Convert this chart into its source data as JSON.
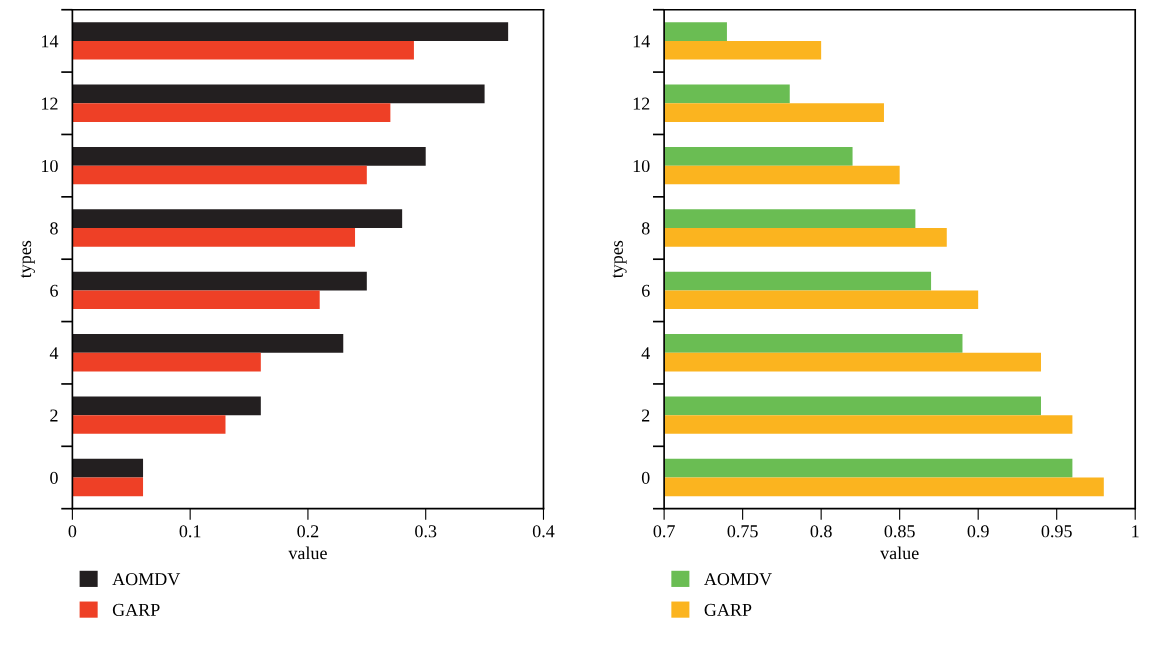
{
  "chart_data": [
    {
      "type": "bar",
      "orientation": "horizontal",
      "xlabel": "value",
      "ylabel": "types",
      "categories": [
        "14",
        "12",
        "10",
        "8",
        "6",
        "4",
        "2",
        "0"
      ],
      "xlim": [
        0,
        0.4
      ],
      "xticks": [
        0,
        0.1,
        0.2,
        0.3,
        0.4
      ],
      "legend": "bottom left",
      "series": [
        {
          "name": "AOMDV",
          "color": "#231f20",
          "values": [
            0.37,
            0.35,
            0.3,
            0.28,
            0.25,
            0.23,
            0.16,
            0.06
          ]
        },
        {
          "name": "GARP",
          "color": "#ee4026",
          "values": [
            0.29,
            0.27,
            0.25,
            0.24,
            0.21,
            0.16,
            0.13,
            0.06
          ]
        }
      ]
    },
    {
      "type": "bar",
      "orientation": "horizontal",
      "xlabel": "value",
      "ylabel": "types",
      "categories": [
        "14",
        "12",
        "10",
        "8",
        "6",
        "4",
        "2",
        "0"
      ],
      "xlim": [
        0.7,
        1
      ],
      "xticks": [
        0.7,
        0.75,
        0.8,
        0.85,
        0.9,
        0.95,
        1
      ],
      "legend": "bottom left",
      "series": [
        {
          "name": "AOMDV",
          "color": "#6abd53",
          "values": [
            0.74,
            0.78,
            0.82,
            0.86,
            0.87,
            0.89,
            0.94,
            0.96
          ]
        },
        {
          "name": "GARP",
          "color": "#fbb41f",
          "values": [
            0.8,
            0.84,
            0.85,
            0.88,
            0.9,
            0.94,
            0.96,
            0.98
          ]
        }
      ]
    }
  ]
}
